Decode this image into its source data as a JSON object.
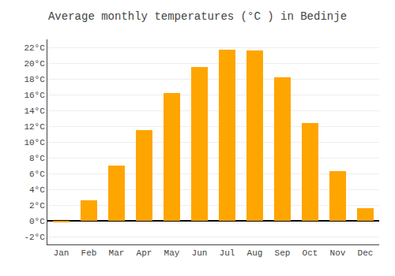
{
  "chart_data": {
    "type": "bar",
    "title": "Average monthly temperatures (°C ) in Bedinje",
    "categories": [
      "Jan",
      "Feb",
      "Mar",
      "Apr",
      "May",
      "Jun",
      "Jul",
      "Aug",
      "Sep",
      "Oct",
      "Nov",
      "Dec"
    ],
    "values": [
      -0.2,
      2.6,
      7.0,
      11.5,
      16.2,
      19.5,
      21.7,
      21.6,
      18.2,
      12.4,
      6.3,
      1.6
    ],
    "color": "#FFA500",
    "ylim": [
      -3,
      23
    ],
    "yticks": [
      {
        "value": -2,
        "label": "-2°C"
      },
      {
        "value": 0,
        "label": "0°C"
      },
      {
        "value": 2,
        "label": "2°C"
      },
      {
        "value": 4,
        "label": "4°C"
      },
      {
        "value": 6,
        "label": "6°C"
      },
      {
        "value": 8,
        "label": "8°C"
      },
      {
        "value": 10,
        "label": "10°C"
      },
      {
        "value": 12,
        "label": "12°C"
      },
      {
        "value": 14,
        "label": "14°C"
      },
      {
        "value": 16,
        "label": "16°C"
      },
      {
        "value": 18,
        "label": "18°C"
      },
      {
        "value": 20,
        "label": "20°C"
      },
      {
        "value": 22,
        "label": "22°C"
      }
    ],
    "grid": true
  }
}
